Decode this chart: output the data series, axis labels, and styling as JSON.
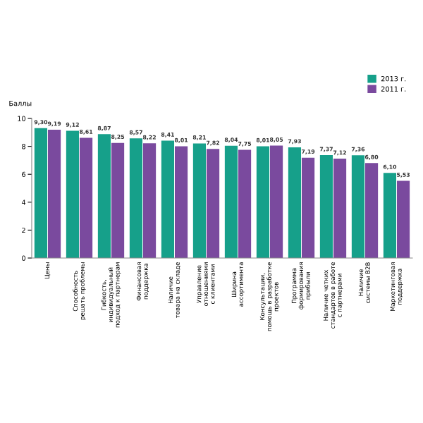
{
  "chart_data": {
    "type": "bar",
    "ylabel": "Баллы",
    "categories": [
      "Цены",
      "Способность\nрешать проблемы",
      "Гибкость,\nиндивидуальный\nподход к партнерам",
      "Финансовая\nподдержка",
      "Наличие\nтовара на складе",
      "Управление\nотношениями\nс клиентами",
      "Ширина\nассортимента",
      "Консультации,\nпомощь в разработке\nпроектов",
      "Программа\nформирования\nприбыли",
      "Наличие четких\nстандартов в работе\nс партнерами",
      "Наличие\nсистемы B2B",
      "Маркетинговая\nподдержка"
    ],
    "series": [
      {
        "name": "2013 г.",
        "color": "#16a08a",
        "values": [
          9.3,
          9.12,
          8.87,
          8.57,
          8.41,
          8.21,
          8.04,
          8.01,
          7.93,
          7.37,
          7.36,
          6.1
        ],
        "value_labels": [
          "9,30",
          "9,12",
          "8,87",
          "8,57",
          "8,41",
          "8,21",
          "8,04",
          "8,01",
          "7,93",
          "7,37",
          "7,36",
          "6,10"
        ]
      },
      {
        "name": "2011 г.",
        "color": "#7a4a9e",
        "values": [
          9.19,
          8.61,
          8.25,
          8.22,
          8.01,
          7.82,
          7.75,
          8.05,
          7.19,
          7.12,
          6.8,
          5.53
        ],
        "value_labels": [
          "9,19",
          "8,61",
          "8,25",
          "8,22",
          "8,01",
          "7,82",
          "7,75",
          "8,05",
          "7,19",
          "7,12",
          "6,80",
          "5,53"
        ]
      }
    ],
    "ylim": [
      0,
      10
    ],
    "yticks": [
      0,
      2,
      4,
      6,
      8,
      10
    ],
    "legend": "top right",
    "grid": false
  }
}
